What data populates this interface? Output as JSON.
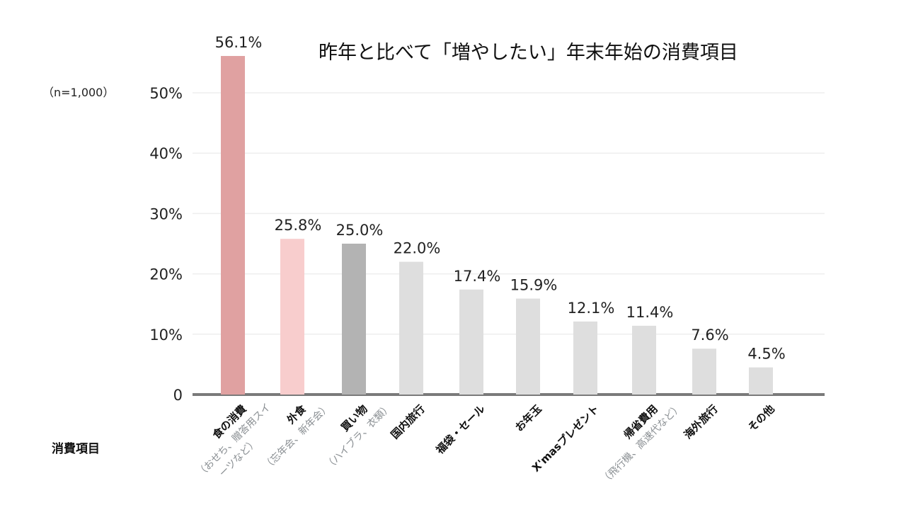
{
  "chart_data": {
    "type": "bar",
    "title": "昨年と比べて「増やしたい」年末年始の消費項目",
    "note": "（n=1,000）",
    "xlabel": "消費項目",
    "ylabel": "",
    "ylim": [
      0,
      55
    ],
    "yticks": [
      0,
      10,
      20,
      30,
      40,
      50
    ],
    "ytick_labels": [
      "0",
      "10%",
      "20%",
      "30%",
      "40%",
      "50%"
    ],
    "grid": true,
    "categories": [
      {
        "label": "食の消費",
        "sub": [
          "（おせち、贈答用スイ",
          "ーツなど）"
        ]
      },
      {
        "label": "外食",
        "sub": [
          "（忘年会、新年会）"
        ]
      },
      {
        "label": "買い物",
        "sub": [
          "（ハイブラ、衣類）"
        ]
      },
      {
        "label": "国内旅行",
        "sub": []
      },
      {
        "label": "福袋・セール",
        "sub": []
      },
      {
        "label": "お年玉",
        "sub": []
      },
      {
        "label": "X'masプレゼント",
        "sub": []
      },
      {
        "label": "帰省費用",
        "sub": [
          "（飛行機、高速代など）"
        ]
      },
      {
        "label": "海外旅行",
        "sub": []
      },
      {
        "label": "その他",
        "sub": []
      }
    ],
    "values": [
      56.1,
      25.8,
      25.0,
      22.0,
      17.4,
      15.9,
      12.1,
      11.4,
      7.6,
      4.5
    ],
    "value_labels": [
      "56.1%",
      "25.8%",
      "25.0%",
      "22.0%",
      "17.4%",
      "15.9%",
      "12.1%",
      "11.4%",
      "7.6%",
      "4.5%"
    ],
    "colors": [
      "#e0a1a1",
      "#f8cdcd",
      "#b3b3b3",
      "#dedede",
      "#dedede",
      "#dedede",
      "#dedede",
      "#dedede",
      "#dedede",
      "#dedede"
    ],
    "gridline_color": "#eeeeee",
    "axis_color": "#7a7a7a"
  }
}
